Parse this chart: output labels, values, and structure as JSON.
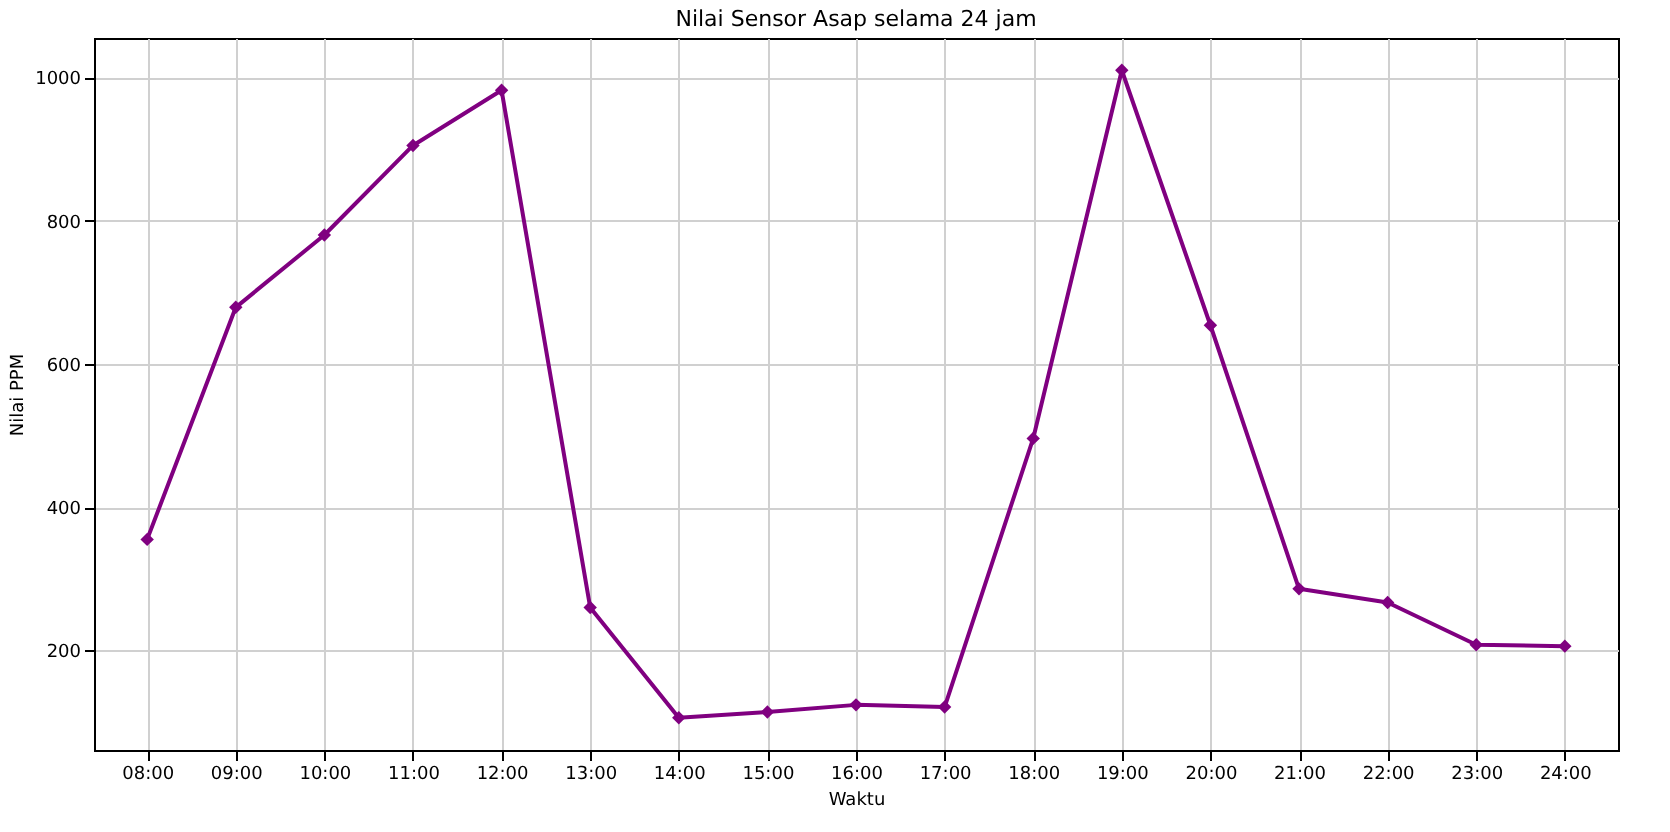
{
  "chart_data": {
    "type": "line",
    "title": "Nilai Sensor Asap selama 24 jam",
    "xlabel": "Waktu",
    "ylabel": "Nilai PPM",
    "categories": [
      "08:00",
      "09:00",
      "10:00",
      "11:00",
      "12:00",
      "13:00",
      "14:00",
      "15:00",
      "16:00",
      "17:00",
      "18:00",
      "19:00",
      "20:00",
      "21:00",
      "22:00",
      "23:00",
      "24:00"
    ],
    "series": [
      {
        "color": "#800080",
        "values": [
          355,
          679,
          780,
          905,
          982,
          260,
          106,
          114,
          124,
          121,
          496,
          1010,
          654,
          286,
          267,
          208,
          206
        ]
      }
    ],
    "ylim": [
      61,
      1055
    ],
    "yticks": [
      200,
      400,
      600,
      800,
      1000
    ],
    "grid": true,
    "marker": "diamond",
    "line_style": "solid"
  }
}
